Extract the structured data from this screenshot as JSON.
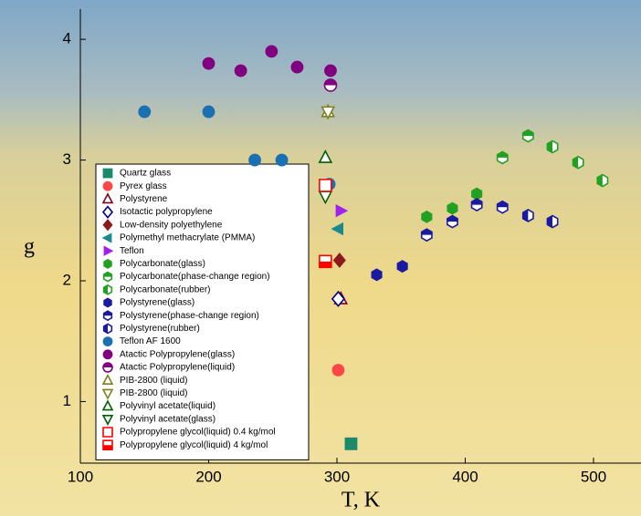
{
  "chart_data": {
    "type": "scatter",
    "xlabel": "T, K",
    "ylabel": "g",
    "xlim": [
      100,
      537
    ],
    "ylim": [
      0.49,
      4.25
    ],
    "xticks": [
      100,
      200,
      300,
      400,
      500
    ],
    "yticks": [
      1,
      2,
      3,
      4
    ],
    "series": [
      {
        "name": "Quartz glass",
        "color": "#1a8a6a",
        "marker": "square",
        "fill": "full",
        "x": [
          311
        ],
        "values": [
          0.65
        ]
      },
      {
        "name": "Pyrex glass",
        "color": "#ff4646",
        "marker": "circle",
        "fill": "full",
        "x": [
          301
        ],
        "values": [
          1.26
        ]
      },
      {
        "name": "Polystyrene",
        "color": "#800020",
        "marker": "triangle-up",
        "fill": "none",
        "x": [
          303
        ],
        "values": [
          1.85
        ]
      },
      {
        "name": "Isotactic polypropylene",
        "color": "#000080",
        "marker": "diamond",
        "fill": "none",
        "x": [
          301
        ],
        "values": [
          1.85
        ]
      },
      {
        "name": "Low-density polyethylene",
        "color": "#8b1a1a",
        "marker": "diamond",
        "fill": "full",
        "x": [
          302
        ],
        "values": [
          2.17
        ]
      },
      {
        "name": "Polymethyl methacrylate (PMMA)",
        "color": "#1a8a8a",
        "marker": "triangle-left",
        "fill": "full",
        "x": [
          301
        ],
        "values": [
          2.43
        ]
      },
      {
        "name": "Teflon",
        "color": "#a020f0",
        "marker": "triangle-right",
        "fill": "full",
        "x": [
          303
        ],
        "values": [
          2.58
        ]
      },
      {
        "name": "Polycarbonate(glass)",
        "color": "#22a022",
        "marker": "hexagon",
        "fill": "full",
        "x": [
          370,
          390,
          409
        ],
        "values": [
          2.53,
          2.6,
          2.72
        ]
      },
      {
        "name": "Polycarbonate(phase-change region)",
        "color": "#22a022",
        "marker": "hexagon",
        "fill": "top",
        "x": [
          429,
          449
        ],
        "values": [
          3.02,
          3.2
        ]
      },
      {
        "name": "Polycarbonate(rubber)",
        "color": "#22a022",
        "marker": "hexagon",
        "fill": "left",
        "x": [
          468,
          488,
          507
        ],
        "values": [
          3.11,
          2.98,
          2.83
        ]
      },
      {
        "name": "Polystyrene(glass)",
        "color": "#1a1aa0",
        "marker": "hexagon",
        "fill": "full",
        "x": [
          331,
          351
        ],
        "values": [
          2.05,
          2.12
        ]
      },
      {
        "name": "Polystyrene(phase-change region)",
        "color": "#1a1aa0",
        "marker": "hexagon",
        "fill": "top",
        "x": [
          370,
          390,
          409,
          429
        ],
        "values": [
          2.38,
          2.49,
          2.63,
          2.61
        ]
      },
      {
        "name": "Polystyrene(rubber)",
        "color": "#1a1aa0",
        "marker": "hexagon",
        "fill": "left",
        "x": [
          449,
          468
        ],
        "values": [
          2.54,
          2.49
        ]
      },
      {
        "name": "Teflon AF 1600",
        "color": "#1a70b0",
        "marker": "circle",
        "fill": "full",
        "x": [
          150,
          200,
          236,
          257,
          294
        ],
        "values": [
          3.4,
          3.4,
          3.0,
          3.0,
          2.8
        ]
      },
      {
        "name": "Atactic Polypropylene(glass)",
        "color": "#800080",
        "marker": "circle",
        "fill": "full",
        "x": [
          200,
          225,
          249,
          269,
          295
        ],
        "values": [
          3.8,
          3.74,
          3.9,
          3.77,
          3.74
        ]
      },
      {
        "name": "Atactic Polypropylene(liquid)",
        "color": "#800080",
        "marker": "circle",
        "fill": "top",
        "x": [
          295
        ],
        "values": [
          3.62
        ]
      },
      {
        "name": "PIB-2800 (liquid)",
        "color": "#808020",
        "marker": "triangle-up",
        "fill": "none",
        "x": [
          293
        ],
        "values": [
          3.4
        ]
      },
      {
        "name": "PIB-2800 (liquid)",
        "color": "#808020",
        "marker": "triangle-down",
        "fill": "none",
        "x": [
          293
        ],
        "values": [
          3.4
        ]
      },
      {
        "name": "Polyvinyl acetate(liquid)",
        "color": "#006000",
        "marker": "triangle-up",
        "fill": "none",
        "x": [
          291
        ],
        "values": [
          3.02
        ]
      },
      {
        "name": "Polyvinyl acetate(glass)",
        "color": "#006000",
        "marker": "triangle-down",
        "fill": "none",
        "x": [
          291
        ],
        "values": [
          2.7
        ]
      },
      {
        "name": "Polypropylene glycol(liquid) 0.4 kg/mol",
        "color": "#ff0000",
        "marker": "square",
        "fill": "none",
        "x": [
          291
        ],
        "values": [
          2.79
        ]
      },
      {
        "name": "Polypropylene glycol(liquid) 4 kg/mol",
        "color": "#ff0000",
        "marker": "square",
        "fill": "bottom",
        "x": [
          291
        ],
        "values": [
          2.16
        ]
      }
    ]
  }
}
